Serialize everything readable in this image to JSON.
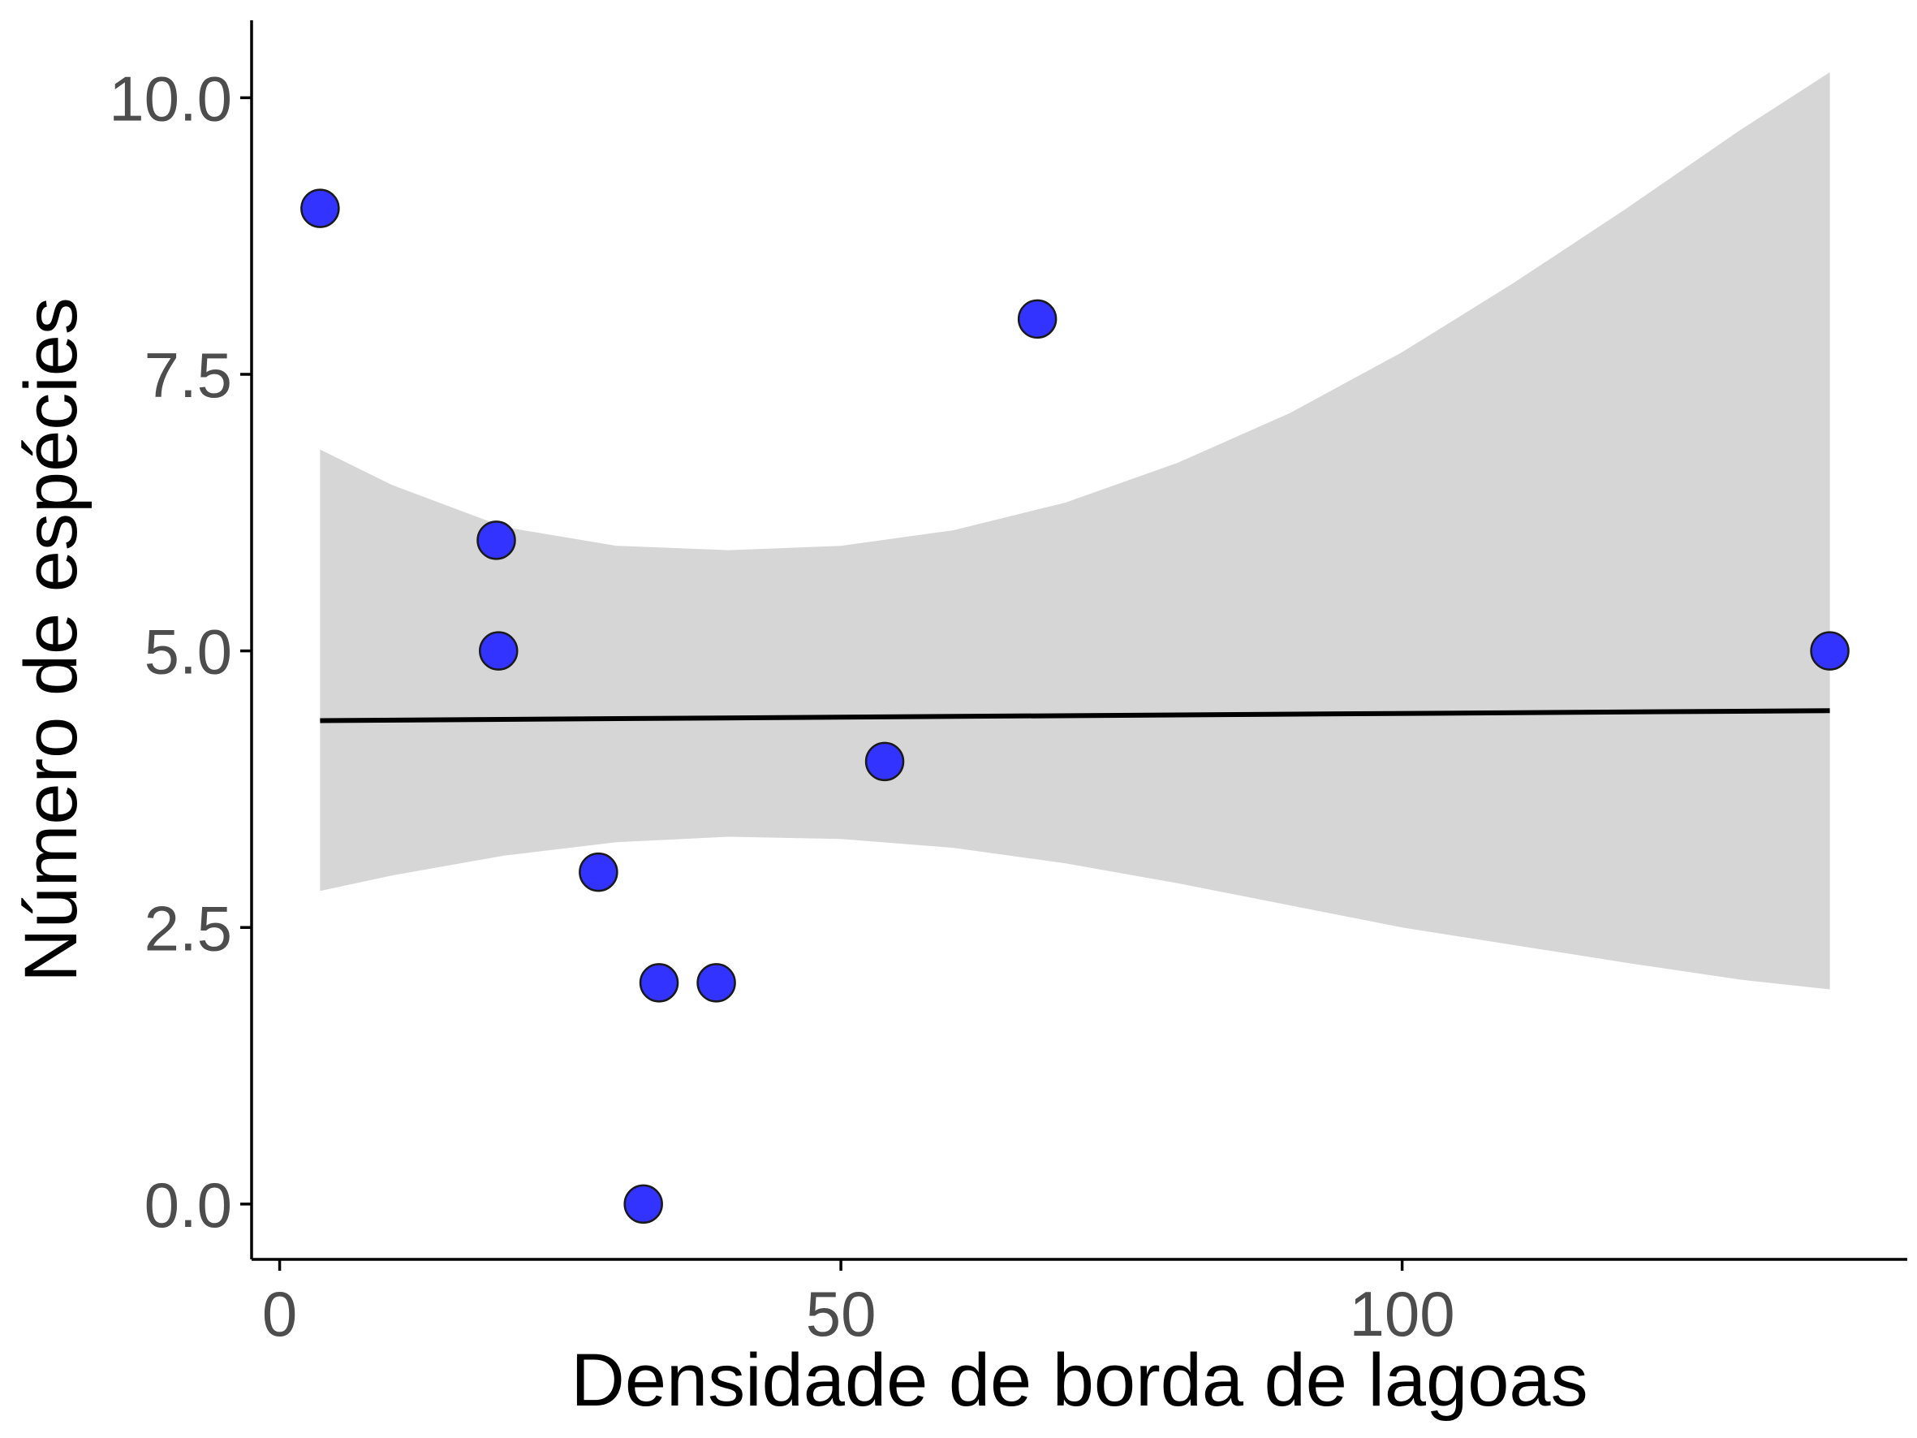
{
  "chart_data": {
    "type": "scatter",
    "title": "",
    "xlabel": "Densidade de borda de lagoas",
    "ylabel": "Número de espécies",
    "xlim": [
      -2.5,
      145
    ],
    "ylim": [
      -0.5,
      10.7
    ],
    "x_ticks": [
      0,
      50,
      100
    ],
    "x_tick_labels": [
      "0",
      "50",
      "100"
    ],
    "y_ticks": [
      0,
      2.5,
      5,
      7.5,
      10
    ],
    "y_tick_labels": [
      "0.0",
      "2.5",
      "5.0",
      "7.5",
      "10.0"
    ],
    "grid": false,
    "legend": "none",
    "points": [
      {
        "x": 3.6,
        "y": 9
      },
      {
        "x": 19.3,
        "y": 6
      },
      {
        "x": 19.5,
        "y": 5
      },
      {
        "x": 28.4,
        "y": 3
      },
      {
        "x": 33.8,
        "y": 2
      },
      {
        "x": 38.9,
        "y": 2
      },
      {
        "x": 32.4,
        "y": 0
      },
      {
        "x": 53.9,
        "y": 4
      },
      {
        "x": 67.5,
        "y": 8
      },
      {
        "x": 138.1,
        "y": 5
      }
    ],
    "fit_line": {
      "x": [
        3.6,
        138.1
      ],
      "y": [
        4.37,
        4.46
      ]
    },
    "confidence_band": [
      {
        "x": 3.6,
        "lower": 2.83,
        "upper": 6.82
      },
      {
        "x": 10,
        "lower": 2.97,
        "upper": 6.5
      },
      {
        "x": 20,
        "lower": 3.15,
        "upper": 6.12
      },
      {
        "x": 30,
        "lower": 3.27,
        "upper": 5.95
      },
      {
        "x": 40,
        "lower": 3.32,
        "upper": 5.91
      },
      {
        "x": 50,
        "lower": 3.3,
        "upper": 5.95
      },
      {
        "x": 60,
        "lower": 3.22,
        "upper": 6.09
      },
      {
        "x": 70,
        "lower": 3.08,
        "upper": 6.34
      },
      {
        "x": 80,
        "lower": 2.9,
        "upper": 6.7
      },
      {
        "x": 90,
        "lower": 2.7,
        "upper": 7.15
      },
      {
        "x": 100,
        "lower": 2.5,
        "upper": 7.7
      },
      {
        "x": 110,
        "lower": 2.34,
        "upper": 8.33
      },
      {
        "x": 120,
        "lower": 2.18,
        "upper": 9.0
      },
      {
        "x": 130,
        "lower": 2.03,
        "upper": 9.7
      },
      {
        "x": 138.1,
        "lower": 1.94,
        "upper": 10.23
      }
    ],
    "colors": {
      "point_fill": "#3333ff",
      "point_stroke": "#1a1a1a",
      "band": "#d6d6d6",
      "fit_line": "#000000",
      "axis": "#000000",
      "tick_label": "#4d4d4d"
    }
  }
}
